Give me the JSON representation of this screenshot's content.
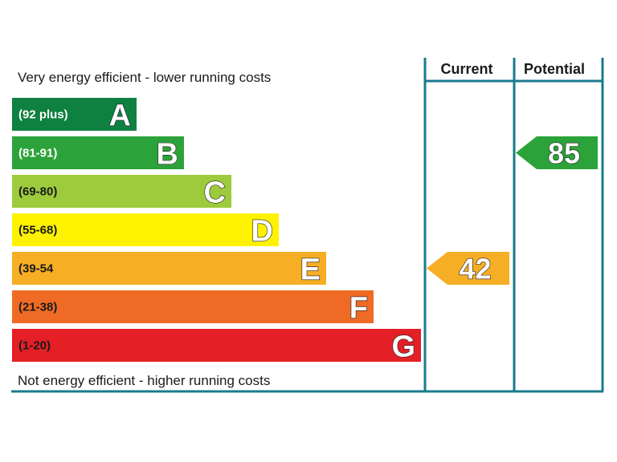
{
  "chart_data": {
    "type": "bar",
    "top_caption": "Very energy efficient - lower running costs",
    "bottom_caption": "Not energy efficient - higher running costs",
    "columns": {
      "current": "Current",
      "potential": "Potential"
    },
    "bands": [
      {
        "letter": "A",
        "range": "(92 plus)",
        "min": 92,
        "max": 100,
        "color": "#0e8140",
        "range_text_color": "#ffffff"
      },
      {
        "letter": "B",
        "range": "(81-91)",
        "min": 81,
        "max": 91,
        "color": "#2ca33a",
        "range_text_color": "#ffffff"
      },
      {
        "letter": "C",
        "range": "(69-80)",
        "min": 69,
        "max": 80,
        "color": "#9dcb3c",
        "range_text_color": "#1a1a1a"
      },
      {
        "letter": "D",
        "range": "(55-68)",
        "min": 55,
        "max": 68,
        "color": "#fff200",
        "range_text_color": "#1a1a1a"
      },
      {
        "letter": "E",
        "range": "(39-54",
        "min": 39,
        "max": 54,
        "color": "#f6ae24",
        "range_text_color": "#1a1a1a"
      },
      {
        "letter": "F",
        "range": "(21-38)",
        "min": 21,
        "max": 38,
        "color": "#ef6b25",
        "range_text_color": "#1a1a1a"
      },
      {
        "letter": "G",
        "range": "(1-20)",
        "min": 1,
        "max": 20,
        "color": "#e41f26",
        "range_text_color": "#1a1a1a"
      }
    ],
    "current": {
      "value": 42,
      "band": "E",
      "color": "#f6ae24"
    },
    "potential": {
      "value": 85,
      "band": "B",
      "color": "#2ca33a"
    },
    "frame_color": "#1a7a8c"
  }
}
